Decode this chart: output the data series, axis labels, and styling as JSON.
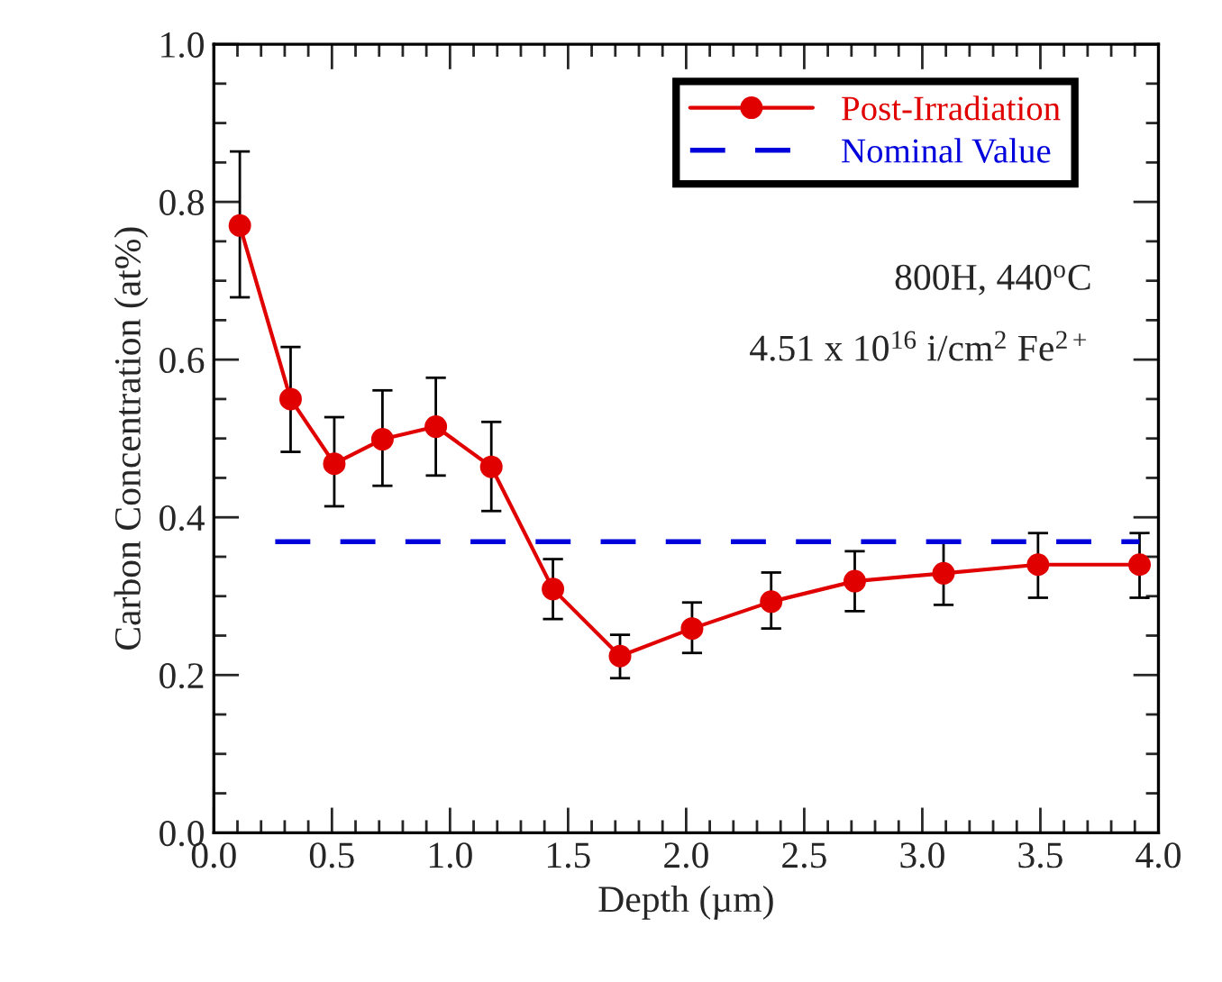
{
  "chart_data": {
    "type": "line",
    "xlabel": "Depth (µm)",
    "ylabel": "Carbon Concentration (at%)",
    "xlim": [
      0.0,
      4.0
    ],
    "xticks": [
      {
        "value": 0,
        "label": "0.0"
      },
      0.5,
      {
        "value": 1,
        "label": "1.0"
      },
      1.5,
      {
        "value": 2,
        "label": "2.0"
      },
      2.5,
      {
        "value": 3,
        "label": "3.0"
      },
      3.5,
      {
        "value": 4,
        "label": "4.0"
      }
    ],
    "ylim": [
      0.0,
      1.0
    ],
    "yticks": [
      {
        "value": 0,
        "label": "0.0"
      },
      0.2,
      0.4,
      0.6,
      0.8,
      {
        "value": 1,
        "label": "1.0"
      }
    ],
    "grid": false,
    "legend": "top right",
    "series": [
      {
        "name": "Post-Irradiation",
        "color": "#e00000",
        "marker": "circle",
        "line_style": "solid",
        "x": [
          0.11,
          0.325,
          0.51,
          0.714,
          0.94,
          1.175,
          1.436,
          1.72,
          2.025,
          2.36,
          2.714,
          3.09,
          3.49,
          3.92
        ],
        "values": [
          0.77,
          0.55,
          0.468,
          0.499,
          0.515,
          0.464,
          0.309,
          0.224,
          0.259,
          0.293,
          0.319,
          0.329,
          0.34,
          0.34
        ],
        "errors": [
          [
            0.679,
            0.864
          ],
          [
            0.483,
            0.616
          ],
          [
            0.414,
            0.527
          ],
          [
            0.44,
            0.561
          ],
          [
            0.453,
            0.577
          ],
          [
            0.408,
            0.521
          ],
          [
            0.271,
            0.347
          ],
          [
            0.196,
            0.251
          ],
          [
            0.228,
            0.292
          ],
          [
            0.259,
            0.33
          ],
          [
            0.281,
            0.357
          ],
          [
            0.289,
            0.368
          ],
          [
            0.298,
            0.38
          ],
          [
            0.298,
            0.38
          ]
        ]
      },
      {
        "name": "Nominal Value",
        "color": "#0000dd",
        "marker": "none",
        "line_style": "dashed",
        "x": [
          0.26,
          3.92
        ],
        "values": [
          0.369,
          0.369
        ]
      }
    ],
    "annotations": [
      "800H, 440$^{o}$C",
      "4.51 x 10$^{16}$ i/cm$^{2}$ Fe$^{2+}$"
    ]
  }
}
